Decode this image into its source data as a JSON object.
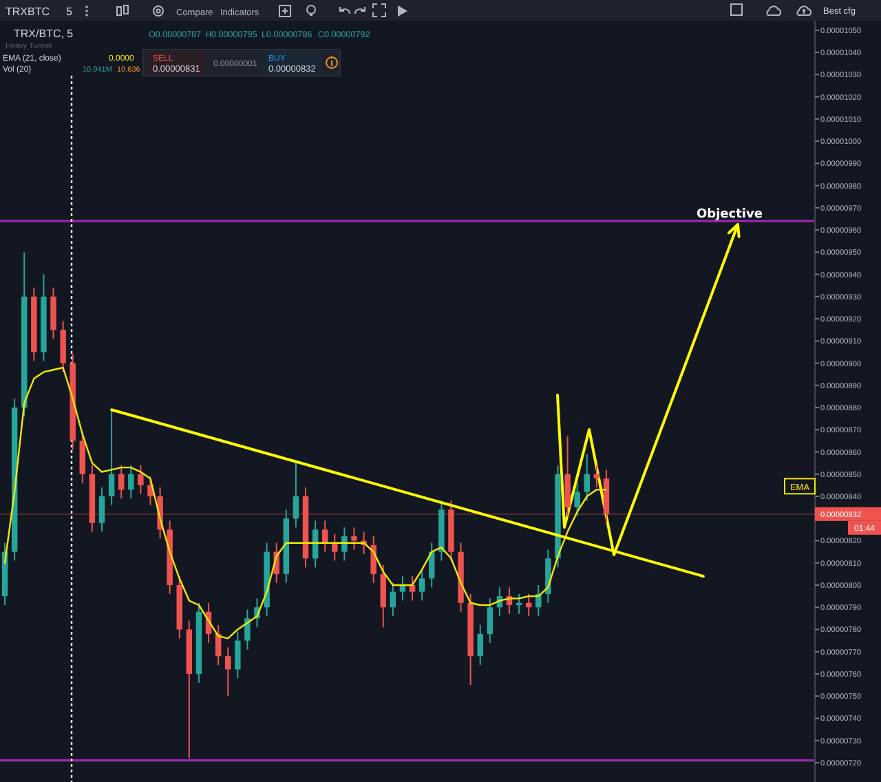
{
  "chart_data": {
    "type": "candlestick",
    "title": "TRX/BTC, 5",
    "categories": [
      null,
      null,
      null,
      null,
      null,
      null,
      null,
      null,
      null,
      null,
      null,
      null,
      null,
      null,
      null,
      null,
      null,
      null,
      null,
      null,
      null,
      null,
      null,
      null,
      null,
      null,
      null,
      null,
      null,
      null,
      null,
      null,
      null,
      null,
      null,
      null,
      null,
      null,
      null,
      null,
      null,
      null,
      null,
      null,
      null,
      null,
      null,
      null,
      null,
      null,
      null,
      null,
      null,
      null,
      null,
      null,
      null,
      null,
      null,
      null,
      null,
      null,
      null,
      null,
      null,
      null,
      null,
      null,
      null,
      null,
      null,
      null,
      null,
      null,
      null,
      null,
      null,
      null,
      null,
      null,
      null,
      null,
      null,
      null
    ],
    "ylim": [
      7.113e-06,
      1.0543e-05
    ],
    "yticks": [
      {
        "value": 7.2e-06,
        "label": "0.00000720"
      },
      {
        "value": 7.3e-06,
        "label": "0.00000730"
      },
      {
        "value": 7.4e-06,
        "label": "0.00000740"
      },
      {
        "value": 7.5e-06,
        "label": "0.00000750"
      },
      {
        "value": 7.6e-06,
        "label": "0.00000760"
      },
      {
        "value": 7.7e-06,
        "label": "0.00000770"
      },
      {
        "value": 7.8e-06,
        "label": "0.00000780"
      },
      {
        "value": 7.9e-06,
        "label": "0.00000790"
      },
      {
        "value": 8e-06,
        "label": "0.00000800"
      },
      {
        "value": 8.1e-06,
        "label": "0.00000810"
      },
      {
        "value": 8.2e-06,
        "label": "0.00000820"
      },
      {
        "value": 8.3e-06,
        "label": null
      },
      {
        "value": 8.4e-06,
        "label": "0.00000840"
      },
      {
        "value": 8.5e-06,
        "label": "0.00000850"
      },
      {
        "value": 8.6e-06,
        "label": "0.00000860"
      },
      {
        "value": 8.7e-06,
        "label": "0.00000870"
      },
      {
        "value": 8.8e-06,
        "label": "0.00000880"
      },
      {
        "value": 8.9e-06,
        "label": "0.00000890"
      },
      {
        "value": 9e-06,
        "label": "0.00000900"
      },
      {
        "value": 9.1e-06,
        "label": "0.00000910"
      },
      {
        "value": 9.2e-06,
        "label": "0.00000920"
      },
      {
        "value": 9.3e-06,
        "label": "0.00000930"
      },
      {
        "value": 9.4e-06,
        "label": "0.00000940"
      },
      {
        "value": 9.5e-06,
        "label": "0.00000950"
      },
      {
        "value": 9.6e-06,
        "label": "0.00000960"
      },
      {
        "value": 9.7e-06,
        "label": "0.00000970"
      },
      {
        "value": 9.8e-06,
        "label": "0.00000980"
      },
      {
        "value": 9.9e-06,
        "label": "0.00000990"
      },
      {
        "value": 1e-05,
        "label": "0.00001000"
      },
      {
        "value": 1.01e-05,
        "label": "0.00001010"
      },
      {
        "value": 1.02e-05,
        "label": "0.00001020"
      },
      {
        "value": 1.03e-05,
        "label": "0.00001030"
      },
      {
        "value": 1.04e-05,
        "label": "0.00001040"
      },
      {
        "value": 1.05e-05,
        "label": "0.00001050"
      }
    ],
    "tick_labels": "y",
    "ohlc": [
      [
        7.95e-06,
        8.19e-06,
        7.91e-06,
        8.15e-06
      ],
      [
        8.15e-06,
        8.84e-06,
        8.11e-06,
        8.8e-06
      ],
      [
        8.8e-06,
        9.5e-06,
        8.76e-06,
        9.3e-06
      ],
      [
        9.3e-06,
        9.34e-06,
        9.01e-06,
        9.05e-06
      ],
      [
        9.05e-06,
        9.4e-06,
        9.01e-06,
        9.3e-06
      ],
      [
        9.3e-06,
        9.34e-06,
        9.11e-06,
        9.15e-06
      ],
      [
        9.15e-06,
        9.19e-06,
        8.96e-06,
        9e-06
      ],
      [
        9e-06,
        9.04e-06,
        8.61e-06,
        8.65e-06
      ],
      [
        8.65e-06,
        8.69e-06,
        8.46e-06,
        8.5e-06
      ],
      [
        8.5e-06,
        8.54e-06,
        8.24e-06,
        8.28e-06
      ],
      [
        8.28e-06,
        8.44e-06,
        8.24e-06,
        8.4e-06
      ],
      [
        8.4e-06,
        8.79e-06,
        8.36e-06,
        8.5e-06
      ],
      [
        8.5e-06,
        8.54e-06,
        8.39e-06,
        8.43e-06
      ],
      [
        8.43e-06,
        8.54e-06,
        8.39e-06,
        8.5e-06
      ],
      [
        8.5e-06,
        8.54e-06,
        8.41e-06,
        8.45e-06
      ],
      [
        8.45e-06,
        8.49e-06,
        8.36e-06,
        8.4e-06
      ],
      [
        8.4e-06,
        8.44e-06,
        8.21e-06,
        8.25e-06
      ],
      [
        8.25e-06,
        8.29e-06,
        7.96e-06,
        8e-06
      ],
      [
        8e-06,
        8.04e-06,
        7.76e-06,
        7.8e-06
      ],
      [
        7.8e-06,
        7.84e-06,
        7.22e-06,
        7.6e-06
      ],
      [
        7.6e-06,
        7.92e-06,
        7.56e-06,
        7.88e-06
      ],
      [
        7.88e-06,
        7.92e-06,
        7.74e-06,
        7.78e-06
      ],
      [
        7.78e-06,
        7.82e-06,
        7.64e-06,
        7.68e-06
      ],
      [
        7.68e-06,
        7.72e-06,
        7.5e-06,
        7.62e-06
      ],
      [
        7.62e-06,
        7.79e-06,
        7.58e-06,
        7.75e-06
      ],
      [
        7.75e-06,
        7.89e-06,
        7.71e-06,
        7.85e-06
      ],
      [
        7.85e-06,
        7.94e-06,
        7.81e-06,
        7.9e-06
      ],
      [
        7.9e-06,
        8.19e-06,
        7.86e-06,
        8.15e-06
      ],
      [
        8.15e-06,
        8.19e-06,
        8.01e-06,
        8.05e-06
      ],
      [
        8.05e-06,
        8.34e-06,
        8.01e-06,
        8.3e-06
      ],
      [
        8.3e-06,
        8.56e-06,
        8.26e-06,
        8.4e-06
      ],
      [
        8.4e-06,
        8.44e-06,
        8.08e-06,
        8.12e-06
      ],
      [
        8.12e-06,
        8.29e-06,
        8.08e-06,
        8.25e-06
      ],
      [
        8.25e-06,
        8.29e-06,
        8.15e-06,
        8.19e-06
      ],
      [
        8.19e-06,
        8.23e-06,
        8.11e-06,
        8.15e-06
      ],
      [
        8.15e-06,
        8.26e-06,
        8.11e-06,
        8.22e-06
      ],
      [
        8.22e-06,
        8.26e-06,
        8.16e-06,
        8.2e-06
      ],
      [
        8.2e-06,
        8.24e-06,
        8.14e-06,
        8.18e-06
      ],
      [
        8.18e-06,
        8.22e-06,
        8.01e-06,
        8.05e-06
      ],
      [
        8.05e-06,
        8.09e-06,
        7.81e-06,
        7.9e-06
      ],
      [
        7.9e-06,
        8.01e-06,
        7.86e-06,
        7.97e-06
      ],
      [
        7.97e-06,
        8.04e-06,
        7.93e-06,
        8e-06
      ],
      [
        8e-06,
        8.04e-06,
        7.93e-06,
        7.97e-06
      ],
      [
        7.97e-06,
        8.07e-06,
        7.93e-06,
        8.03e-06
      ],
      [
        8.03e-06,
        8.19e-06,
        7.99e-06,
        8.15e-06
      ],
      [
        8.15e-06,
        8.38e-06,
        8.11e-06,
        8.34e-06
      ],
      [
        8.34e-06,
        8.38e-06,
        8.11e-06,
        8.15e-06
      ],
      [
        8.15e-06,
        8.19e-06,
        7.88e-06,
        7.92e-06
      ],
      [
        7.92e-06,
        7.96e-06,
        7.55e-06,
        7.68e-06
      ],
      [
        7.68e-06,
        7.82e-06,
        7.64e-06,
        7.78e-06
      ],
      [
        7.78e-06,
        7.94e-06,
        7.74e-06,
        7.9e-06
      ],
      [
        7.9e-06,
        7.99e-06,
        7.86e-06,
        7.95e-06
      ],
      [
        7.95e-06,
        7.99e-06,
        7.87e-06,
        7.91e-06
      ],
      [
        7.91e-06,
        7.96e-06,
        7.87e-06,
        7.92e-06
      ],
      [
        7.92e-06,
        7.96e-06,
        7.86e-06,
        7.9e-06
      ],
      [
        7.9e-06,
        8e-06,
        7.86e-06,
        7.96e-06
      ],
      [
        7.96e-06,
        8.16e-06,
        7.92e-06,
        8.12e-06
      ],
      [
        8.12e-06,
        8.54e-06,
        8.08e-06,
        8.5e-06
      ],
      [
        8.5e-06,
        8.67e-06,
        8.31e-06,
        8.35e-06
      ],
      [
        8.35e-06,
        8.46e-06,
        8.31e-06,
        8.42e-06
      ],
      [
        8.42e-06,
        8.59e-06,
        8.38e-06,
        8.5e-06
      ],
      [
        8.5e-06,
        8.54e-06,
        8.44e-06,
        8.48e-06
      ],
      [
        8.48e-06,
        8.52e-06,
        8.28e-06,
        8.32e-06
      ],
      null,
      null,
      null,
      null,
      null,
      null,
      null,
      null,
      null,
      null,
      null,
      null,
      null,
      null,
      null,
      null,
      null,
      null,
      null,
      null,
      null
    ],
    "colors": [
      "#26a69a",
      "#26a69a",
      "#26a69a",
      "#ef5350",
      "#26a69a",
      "#ef5350",
      "#ef5350",
      "#ef5350",
      "#ef5350",
      "#ef5350",
      "#26a69a",
      "#26a69a",
      "#ef5350",
      "#26a69a",
      "#ef5350",
      "#ef5350",
      "#ef5350",
      "#ef5350",
      "#ef5350",
      "#ef5350",
      "#26a69a",
      "#ef5350",
      "#ef5350",
      "#ef5350",
      "#26a69a",
      "#26a69a",
      "#26a69a",
      "#26a69a",
      "#ef5350",
      "#26a69a",
      "#26a69a",
      "#ef5350",
      "#26a69a",
      "#ef5350",
      "#ef5350",
      "#26a69a",
      "#ef5350",
      "#ef5350",
      "#ef5350",
      "#ef5350",
      "#26a69a",
      "#26a69a",
      "#ef5350",
      "#26a69a",
      "#26a69a",
      "#26a69a",
      "#ef5350",
      "#ef5350",
      "#ef5350",
      "#26a69a",
      "#26a69a",
      "#26a69a",
      "#ef5350",
      "#26a69a",
      "#ef5350",
      "#26a69a",
      "#26a69a",
      "#26a69a",
      "#ef5350",
      "#26a69a",
      "#26a69a",
      "#ef5350",
      "#ef5350",
      null,
      null,
      null,
      null,
      null,
      null,
      null,
      null,
      null,
      null,
      null,
      null,
      null,
      null,
      null,
      null,
      null,
      null,
      null,
      null,
      null
    ],
    "series": [
      {
        "name": "EMA",
        "type": "line",
        "color": "#f5e900",
        "values": [
          8.1e-06,
          8.42e-06,
          8.82e-06,
          8.93e-06,
          8.96e-06,
          8.97e-06,
          8.98e-06,
          8.84e-06,
          8.68e-06,
          8.55e-06,
          8.51e-06,
          8.52e-06,
          8.53e-06,
          8.53e-06,
          8.51e-06,
          8.48e-06,
          8.3e-06,
          8.15e-06,
          8.03e-06,
          7.93e-06,
          7.91e-06,
          7.84e-06,
          7.77e-06,
          7.76e-06,
          7.8e-06,
          7.83e-06,
          7.86e-06,
          7.97e-06,
          8.13e-06,
          8.19e-06,
          8.19e-06,
          8.19e-06,
          8.19e-06,
          8.19e-06,
          8.19e-06,
          8.19e-06,
          8.19e-06,
          8.19e-06,
          8.15e-06,
          8.06e-06,
          8e-06,
          8e-06,
          8e-06,
          8.07e-06,
          8.15e-06,
          8.17e-06,
          8.12e-06,
          8.01e-06,
          7.92e-06,
          7.91e-06,
          7.91e-06,
          7.93e-06,
          7.94e-06,
          7.94e-06,
          7.95e-06,
          7.95e-06,
          7.99e-06,
          8.13e-06,
          8.24e-06,
          8.33e-06,
          8.4e-06,
          8.43e-06,
          8.43e-06,
          null,
          null,
          null,
          null,
          null,
          null,
          null,
          null,
          null,
          null,
          null,
          null,
          null,
          null,
          null,
          null,
          null,
          null,
          null,
          null,
          null
        ]
      },
      {
        "type": "line",
        "color": "#ffff00",
        "values": [
          null,
          null,
          null,
          null,
          null,
          null,
          null,
          null,
          null,
          null,
          null,
          8.79e-06,
          null,
          null,
          null,
          null,
          null,
          null,
          null,
          null,
          null,
          null,
          null,
          null,
          null,
          null,
          null,
          null,
          null,
          null,
          null,
          null,
          null,
          null,
          null,
          null,
          null,
          null,
          null,
          null,
          null,
          null,
          null,
          null,
          null,
          null,
          null,
          null,
          null,
          null,
          null,
          null,
          null,
          null,
          null,
          null,
          null,
          null,
          null,
          null,
          null,
          null,
          null,
          null,
          null,
          null,
          null,
          null,
          null,
          null,
          null,
          null,
          8.04e-06,
          null,
          null,
          null,
          null,
          null,
          null,
          null,
          null,
          null,
          null,
          null
        ]
      }
    ],
    "ref_lines": [
      {
        "axis": "y",
        "value": 9.64e-06,
        "color": "#9c27b0"
      },
      {
        "axis": "y",
        "value": 7.21e-06,
        "color": "#9c27b0"
      },
      {
        "axis": "y",
        "value": 8.32e-06,
        "label": "0.00000832",
        "color": "#ef5350"
      }
    ],
    "annotations": [
      "Objective",
      "TRXBTC",
      "5",
      "Compare",
      "Indicators",
      "Best cfg",
      "O0.00000787",
      "H0.00000795",
      "L0.00000786",
      "C0.00000792",
      "Heavy Tunnel",
      "EMA (21, close)",
      "0.0000",
      "Vol (20)",
      "10.941M",
      "10.636",
      "SELL",
      "0.00000831",
      "0.00000001",
      "BUY",
      "0.00000832",
      "01:44"
    ],
    "legend": "right"
  }
}
